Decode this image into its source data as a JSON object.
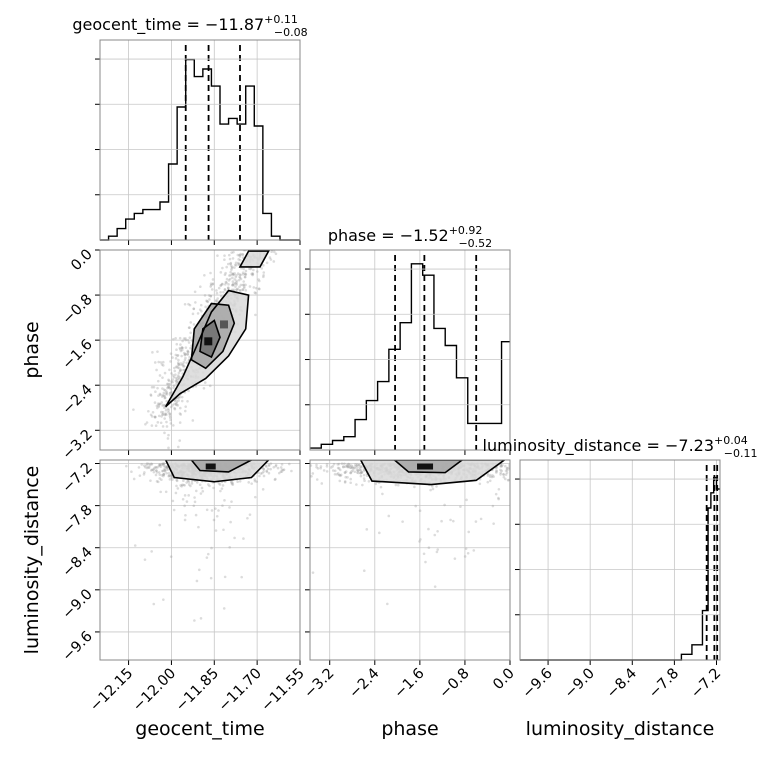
{
  "chart_data": {
    "type": "corner",
    "parameters": [
      "geocent_time",
      "phase",
      "luminosity_distance"
    ],
    "titles": [
      {
        "param": "geocent_time",
        "text": "geocent_time = −11.87",
        "sup": "+0.11",
        "sub": "−0.08"
      },
      {
        "param": "phase",
        "text": "phase = −1.52",
        "sup": "+0.92",
        "sub": "−0.52"
      },
      {
        "param": "luminosity_distance",
        "text": "luminosity_distance = −7.23",
        "sup": "+0.04",
        "sub": "−0.11"
      }
    ],
    "axes": {
      "geocent_time": {
        "range": [
          -12.25,
          -11.55
        ],
        "ticks": [
          -12.15,
          -12.0,
          -11.85,
          -11.7,
          -11.55
        ],
        "tick_labels": [
          "−12.15",
          "−12.00",
          "−11.85",
          "−11.70",
          "−11.55"
        ]
      },
      "phase": {
        "range": [
          -3.55,
          0.0
        ],
        "ticks": [
          -3.2,
          -2.4,
          -1.6,
          -0.8,
          0.0
        ],
        "tick_labels": [
          "−3.2",
          "−2.4",
          "−1.6",
          "−0.8",
          "0.0"
        ]
      },
      "luminosity_distance": {
        "range": [
          -10.0,
          -7.15
        ],
        "ticks": [
          -9.6,
          -9.0,
          -8.4,
          -7.8,
          -7.2
        ],
        "tick_labels": [
          "−9.6",
          "−9.0",
          "−8.4",
          "−7.8",
          "−7.2"
        ]
      }
    },
    "histograms": {
      "geocent_time": {
        "edges": [
          -12.25,
          -12.22,
          -12.19,
          -12.16,
          -12.13,
          -12.1,
          -12.07,
          -12.04,
          -12.01,
          -11.98,
          -11.95,
          -11.92,
          -11.89,
          -11.86,
          -11.83,
          -11.8,
          -11.77,
          -11.74,
          -11.71,
          -11.68,
          -11.65,
          -11.62,
          -11.59,
          -11.55
        ],
        "counts": [
          0,
          0.02,
          0.06,
          0.11,
          0.14,
          0.16,
          0.16,
          0.2,
          0.4,
          0.7,
          0.95,
          0.86,
          0.9,
          0.81,
          0.61,
          0.64,
          0.61,
          0.81,
          0.6,
          0.14,
          0.02,
          0,
          0
        ],
        "quantiles": [
          -11.95,
          -11.87,
          -11.76
        ]
      },
      "phase": {
        "edges": [
          -3.55,
          -3.35,
          -3.15,
          -2.95,
          -2.75,
          -2.55,
          -2.35,
          -2.15,
          -1.95,
          -1.75,
          -1.55,
          -1.35,
          -1.15,
          -0.95,
          -0.75,
          -0.55,
          -0.35,
          -0.15,
          0.0
        ],
        "counts": [
          0.01,
          0.03,
          0.05,
          0.07,
          0.16,
          0.26,
          0.36,
          0.53,
          0.67,
          0.98,
          0.92,
          0.64,
          0.55,
          0.38,
          0.14,
          0.14,
          0.14,
          0.57
        ],
        "quantiles": [
          -2.04,
          -1.52,
          -0.6
        ]
      },
      "luminosity_distance": {
        "edges": [
          -10.0,
          -7.7,
          -7.55,
          -7.4,
          -7.32,
          -7.28,
          -7.24,
          -7.2,
          -7.15
        ],
        "counts": [
          0,
          0.03,
          0.08,
          0.26,
          0.8,
          0.88,
          0.96,
          0.9
        ],
        "quantiles": [
          -7.34,
          -7.23,
          -7.19
        ]
      }
    },
    "contours_2d": {
      "phase_vs_geocent_time": {
        "levels": [
          [
            [
              -12.02,
              -2.78
            ],
            [
              -11.96,
              -2.25
            ],
            [
              -11.92,
              -1.8
            ],
            [
              -11.86,
              -1.1
            ],
            [
              -11.8,
              -0.72
            ],
            [
              -11.73,
              -0.8
            ],
            [
              -11.74,
              -1.4
            ],
            [
              -11.8,
              -1.88
            ],
            [
              -11.88,
              -2.28
            ],
            [
              -11.97,
              -2.55
            ]
          ],
          [
            [
              -11.93,
              -1.95
            ],
            [
              -11.92,
              -1.4
            ],
            [
              -11.86,
              -0.95
            ],
            [
              -11.8,
              -0.98
            ],
            [
              -11.78,
              -1.3
            ],
            [
              -11.82,
              -1.8
            ],
            [
              -11.88,
              -2.1
            ]
          ],
          [
            [
              -11.9,
              -1.8
            ],
            [
              -11.89,
              -1.4
            ],
            [
              -11.85,
              -1.25
            ],
            [
              -11.83,
              -1.55
            ],
            [
              -11.86,
              -1.9
            ]
          ],
          [
            [
              -11.76,
              -0.3
            ],
            [
              -11.73,
              -0.02
            ],
            [
              -11.66,
              -0.02
            ],
            [
              -11.69,
              -0.3
            ]
          ]
        ]
      },
      "luminosity_distance_vs_geocent_time": {
        "levels": [
          [
            [
              -12.02,
              -7.15
            ],
            [
              -11.99,
              -7.4
            ],
            [
              -11.85,
              -7.46
            ],
            [
              -11.72,
              -7.4
            ],
            [
              -11.66,
              -7.15
            ]
          ],
          [
            [
              -11.93,
              -7.15
            ],
            [
              -11.9,
              -7.3
            ],
            [
              -11.8,
              -7.32
            ],
            [
              -11.72,
              -7.15
            ]
          ]
        ]
      },
      "luminosity_distance_vs_phase": {
        "levels": [
          [
            [
              -2.65,
              -7.15
            ],
            [
              -2.45,
              -7.45
            ],
            [
              -1.4,
              -7.5
            ],
            [
              -0.6,
              -7.44
            ],
            [
              -0.1,
              -7.15
            ]
          ],
          [
            [
              -2.05,
              -7.15
            ],
            [
              -1.8,
              -7.32
            ],
            [
              -1.15,
              -7.33
            ],
            [
              -0.85,
              -7.15
            ]
          ]
        ]
      }
    }
  }
}
